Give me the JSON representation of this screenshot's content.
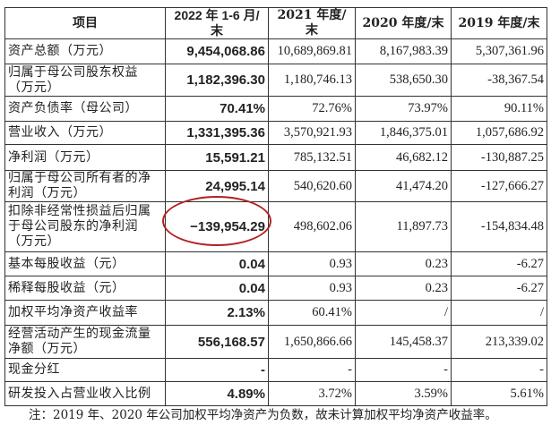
{
  "header": [
    "项目",
    "2022 年 1-6 月/末",
    "2021 年度/末",
    "2020 年度/末",
    "2019 年度/末"
  ],
  "rows": [
    {
      "label": "资产总额（万元）",
      "values": [
        "9,454,068.86",
        "10,689,869.81",
        "8,167,983.39",
        "5,307,361.96"
      ]
    },
    {
      "label": "归属于母公司股东权益（万元）",
      "values": [
        "1,182,396.30",
        "1,180,746.13",
        "538,650.30",
        "-38,367.54"
      ]
    },
    {
      "label": "资产负债率（母公司）",
      "values": [
        "70.41%",
        "72.76%",
        "73.97%",
        "90.11%"
      ]
    },
    {
      "label": "营业收入（万元）",
      "values": [
        "1,331,395.36",
        "3,570,921.93",
        "1,846,375.01",
        "1,057,686.92"
      ]
    },
    {
      "label": "净利润（万元）",
      "values": [
        "15,591.21",
        "785,132.51",
        "46,682.12",
        "-130,887.25"
      ]
    },
    {
      "label": "归属于母公司所有者的净利润（万元）",
      "values": [
        "24,995.14",
        "540,620.60",
        "41,474.20",
        "-127,666.27"
      ]
    },
    {
      "label": "扣除非经常性损益后归属于母公司股东的净利润（万元）",
      "values": [
        "−139,954.29",
        "498,602.06",
        "11,897.73",
        "-154,834.48"
      ]
    },
    {
      "label": "基本每股收益（元）",
      "values": [
        "0.04",
        "0.93",
        "0.23",
        "-6.27"
      ]
    },
    {
      "label": "稀释每股收益（元）",
      "values": [
        "0.04",
        "0.93",
        "0.23",
        "-6.27"
      ]
    },
    {
      "label": "加权平均净资产收益率",
      "values": [
        "2.13%",
        "60.41%",
        "/",
        "/"
      ]
    },
    {
      "label": "经营活动产生的现金流量净额（万元）",
      "values": [
        "556,168.57",
        "1,650,866.66",
        "145,458.37",
        "213,339.02"
      ]
    },
    {
      "label": "现金分红",
      "values": [
        "-",
        "-",
        "-",
        "-"
      ]
    },
    {
      "label": "研发投入占营业收入比例",
      "values": [
        "4.89%",
        "3.72%",
        "3.59%",
        "5.61%"
      ]
    }
  ],
  "highlight_color": "#b22222",
  "note": "注：2019 年、2020 年公司加权平均净资产为负数，故未计算加权平均净资产收益率。"
}
